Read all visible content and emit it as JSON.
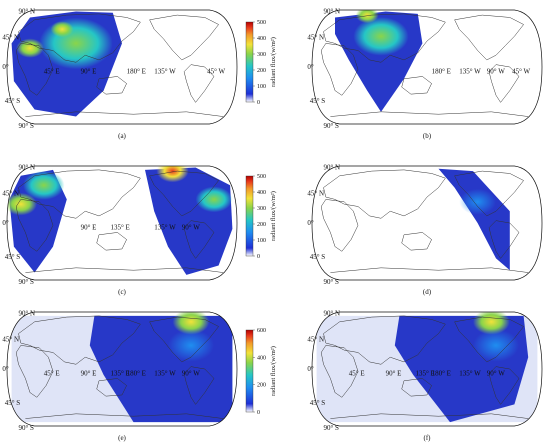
{
  "colors": {
    "scale": [
      "#ffffff",
      "#1e2fd6",
      "#1f8ef0",
      "#25c6c6",
      "#8ad44a",
      "#f2e23a",
      "#f29a2a",
      "#e83a1d",
      "#b40000"
    ],
    "low": "#2738c8",
    "land_outline": "#333333"
  },
  "grid_labels": {
    "lat_n90": "90° N",
    "lat_n45": "45° N",
    "lat_eq": "0°",
    "lat_s45": "45° S",
    "lat_s90": "90° S",
    "lon_45e": "45° E",
    "lon_90e": "90° E",
    "lon_135e": "135° E",
    "lon_180": "180° E",
    "lon_135w": "135° W",
    "lon_90w": "90° W",
    "lon_45w": "45° W"
  },
  "colorbars": [
    {
      "title": "radiant flux/(w/m²)",
      "ticks": [
        "500",
        "400",
        "300",
        "200",
        "100",
        "0"
      ]
    },
    {
      "title": "radiant flux/(w/m²)",
      "ticks": [
        "500",
        "400",
        "300",
        "200",
        "100",
        "0"
      ]
    },
    {
      "title": "radiant flux/(w/m²)",
      "ticks": [
        "600",
        "400",
        "200",
        "0"
      ]
    }
  ],
  "panels": [
    {
      "label": "(a)",
      "coverage": "Asia, Africa, Europe, Australia, Indian Ocean and western Pacific",
      "labels_shown": [
        "lat_n90",
        "lat_n45",
        "lat_eq",
        "lat_s45",
        "lat_s90",
        "lon_45e",
        "lon_90e",
        "lon_180",
        "lon_135w",
        "lon_45w"
      ]
    },
    {
      "label": "(b)",
      "coverage": "East Asia, Australia and western Pacific crescent",
      "labels_shown": [
        "lat_n90",
        "lat_n45",
        "lat_eq",
        "lat_s45",
        "lat_s90",
        "lon_180",
        "lon_135w",
        "lon_90w",
        "lon_45w"
      ]
    },
    {
      "label": "(c)",
      "coverage": "Americas, Atlantic, Africa and Europe",
      "labels_shown": [
        "lat_n90",
        "lat_n45",
        "lat_eq",
        "lat_s45",
        "lat_s90",
        "lon_90e",
        "lon_135e",
        "lon_135w",
        "lon_90w"
      ]
    },
    {
      "label": "(d)",
      "coverage": "Narrow strip over the Americas",
      "labels_shown": [
        "lat_n90",
        "lat_n45",
        "lat_eq",
        "lat_s45",
        "lat_s90"
      ]
    },
    {
      "label": "(e)",
      "coverage": "Pacific and Americas",
      "labels_shown": [
        "lat_n90",
        "lat_n45",
        "lat_eq",
        "lat_s45",
        "lat_s90",
        "lon_45e",
        "lon_90e",
        "lon_135e",
        "lon_180",
        "lon_135w",
        "lon_90w"
      ]
    },
    {
      "label": "(f)",
      "coverage": "Pacific and Americas",
      "labels_shown": [
        "lat_n90",
        "lat_n45",
        "lat_eq",
        "lat_s45",
        "lat_s90",
        "lon_45e",
        "lon_90e",
        "lon_135e",
        "lon_180",
        "lon_135w",
        "lon_90w"
      ]
    }
  ]
}
